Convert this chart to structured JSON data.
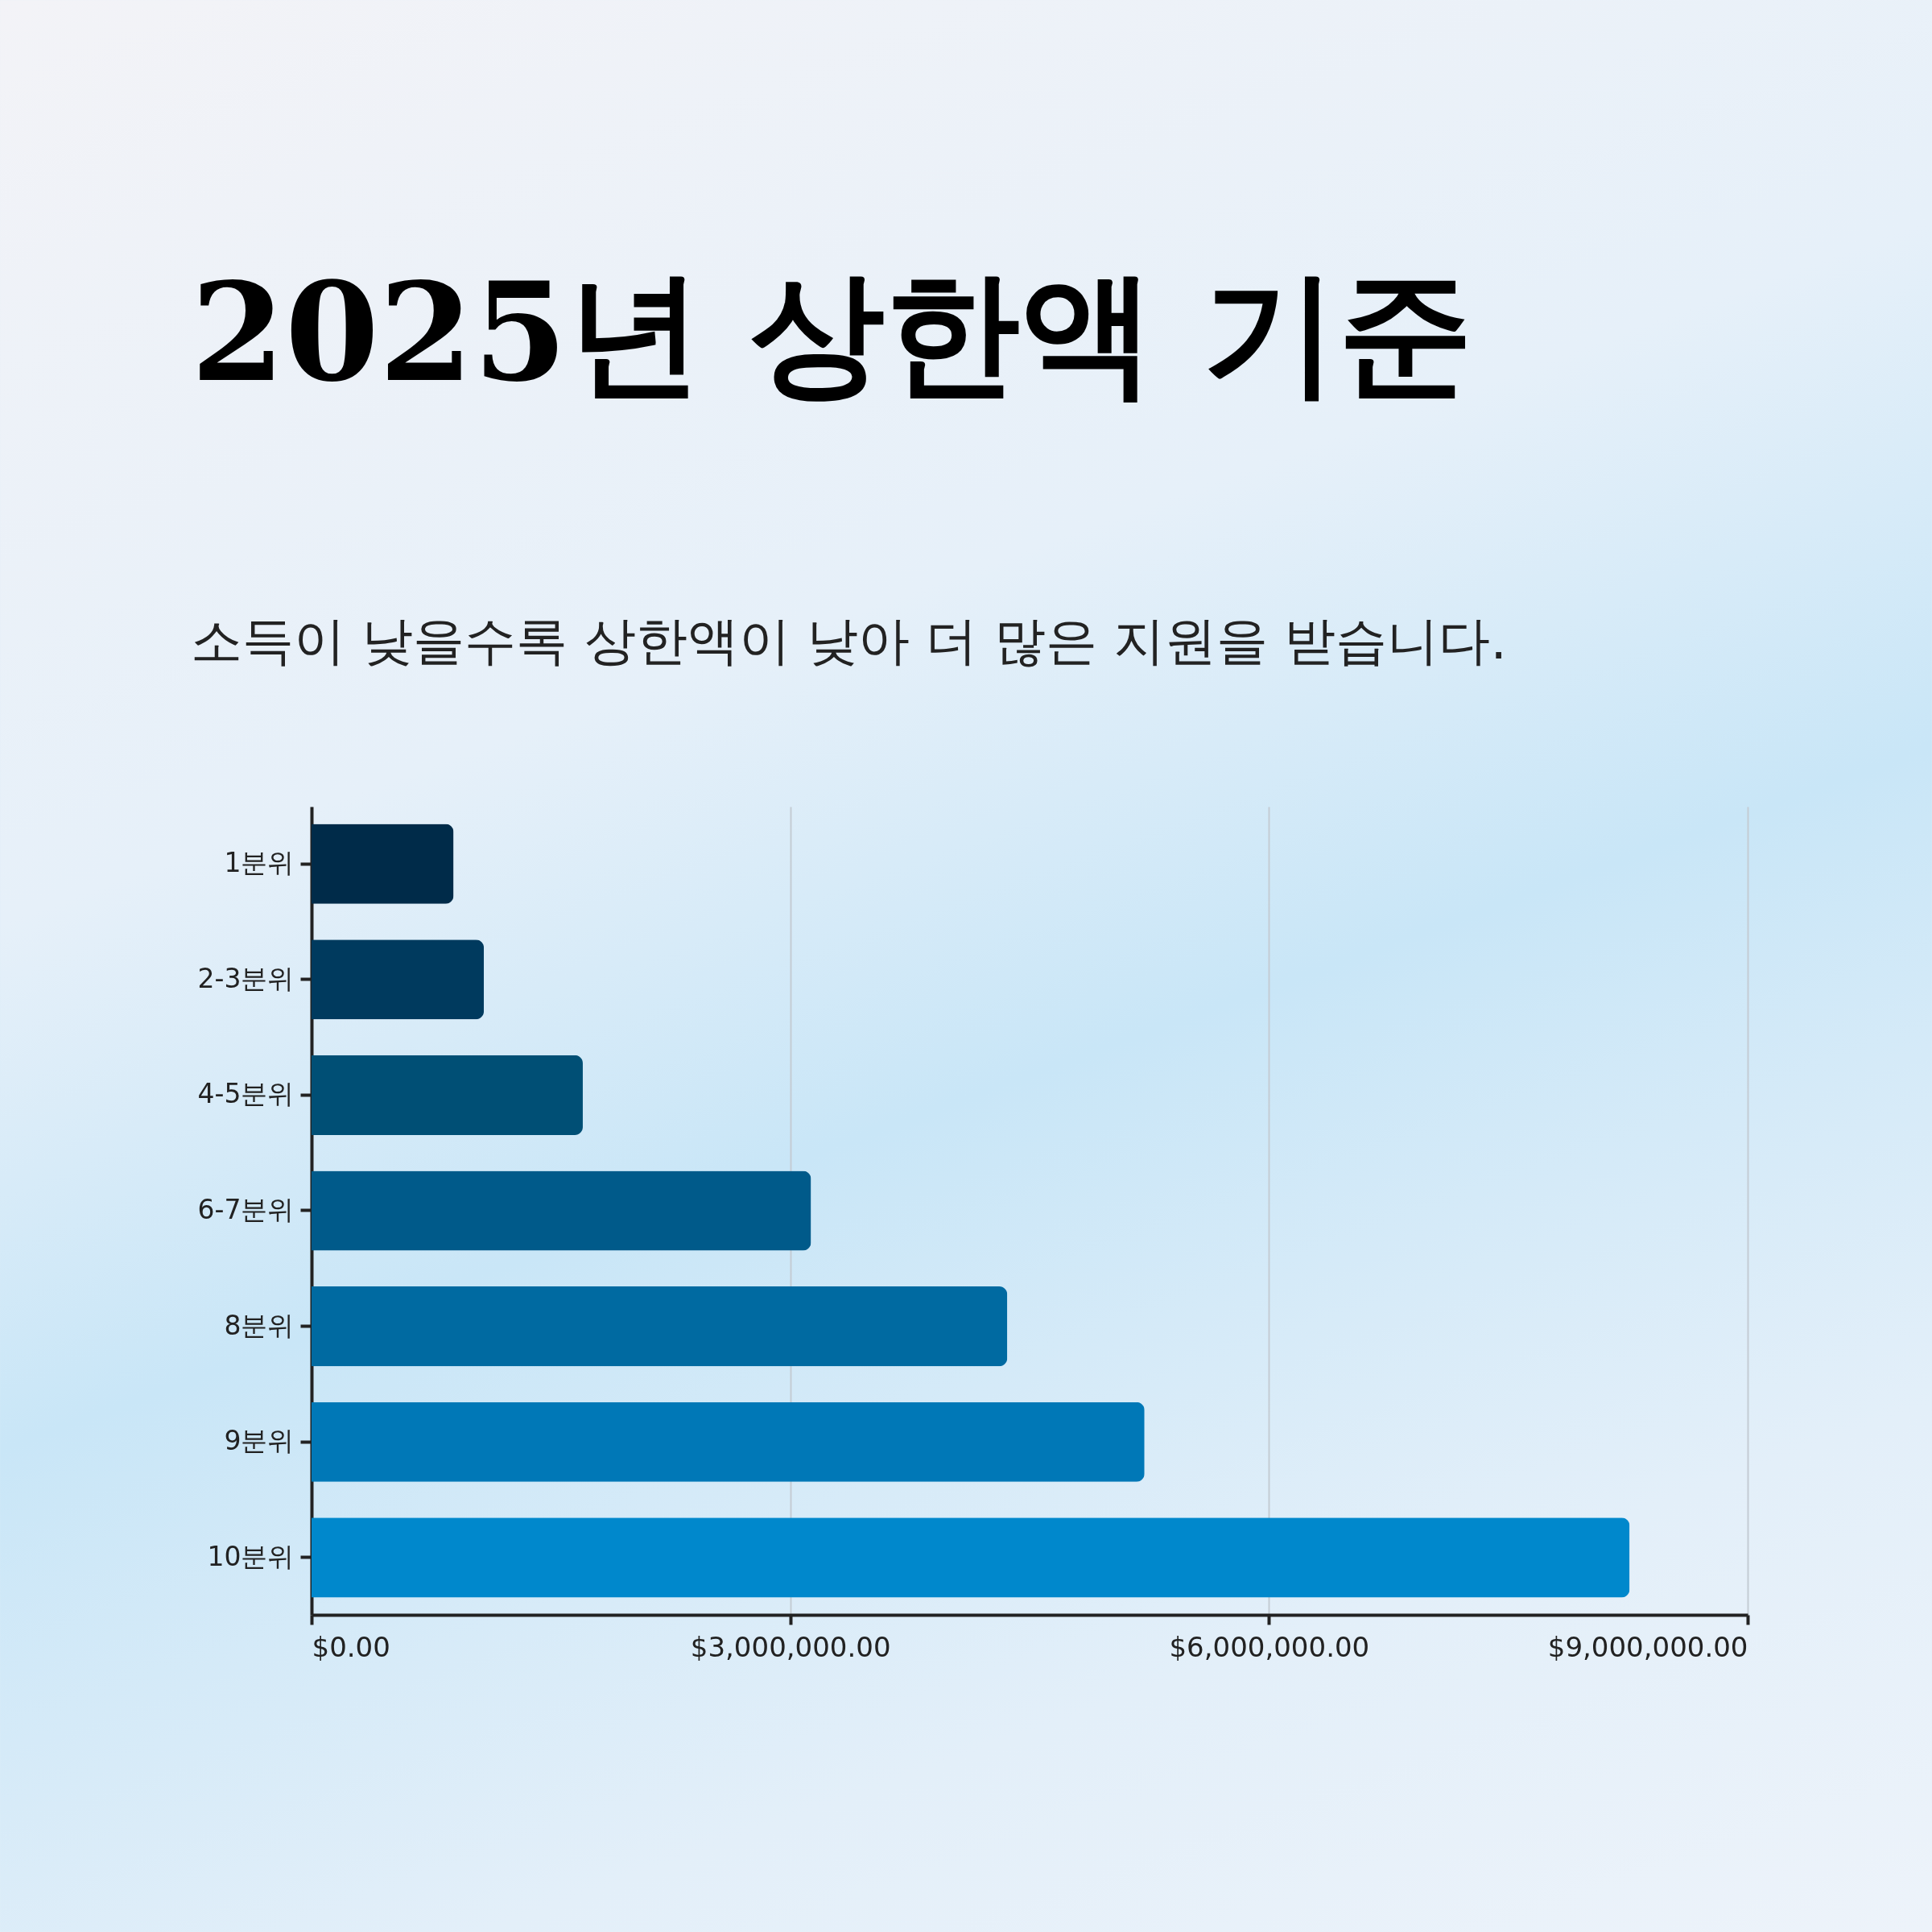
{
  "chart_data": {
    "type": "bar",
    "orientation": "horizontal",
    "title": "2025년 상한액 기준",
    "subtitle": "소득이 낮을수록 상한액이 낮아 더 많은 지원을 받습니다.",
    "categories": [
      "1분위",
      "2-3분위",
      "4-5분위",
      "6-7분위",
      "8분위",
      "9분위",
      "10분위"
    ],
    "values": [
      890000,
      1080000,
      1700000,
      3130000,
      4360000,
      5220000,
      8260000
    ],
    "colors": [
      "#002b49",
      "#003a5e",
      "#004f75",
      "#005a8a",
      "#006aa1",
      "#0078b7",
      "#0088cc"
    ],
    "xlim": [
      0,
      9000000
    ],
    "xticks": [
      {
        "value": 0,
        "label": "$0.00"
      },
      {
        "value": 3000000,
        "label": "$3,000,000.00"
      },
      {
        "value": 6000000,
        "label": "$6,000,000.00"
      },
      {
        "value": 9000000,
        "label": "$9,000,000.00"
      }
    ],
    "grid": "x",
    "legend": false
  }
}
